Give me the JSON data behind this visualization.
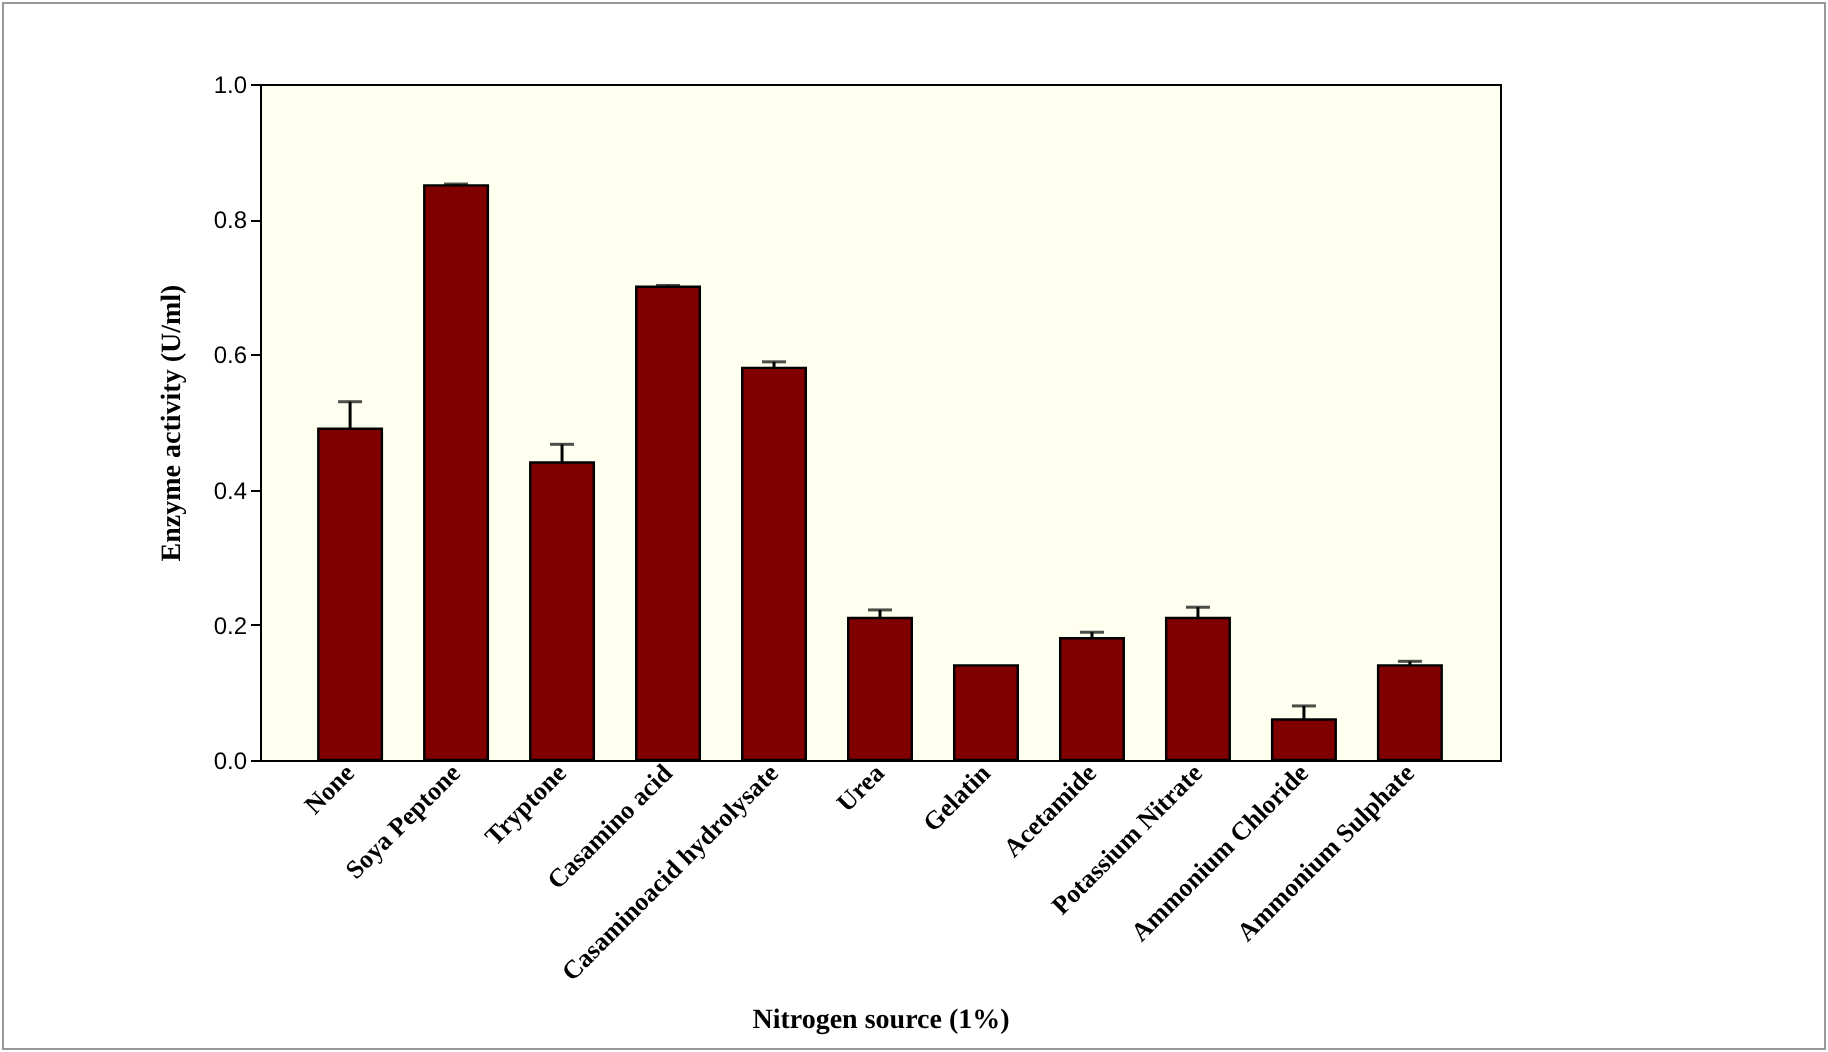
{
  "chart_data": {
    "type": "bar",
    "xlabel": "Nitrogen source (1%)",
    "ylabel": "Enzyme activity (U/ml)",
    "categories": [
      "None",
      "Soya Peptone",
      "Tryptone",
      "Casamino acid",
      "Casaminoacid hydrolysate",
      "Urea",
      "Gelatin",
      "Acetamide",
      "Potassium Nitrate",
      "Ammonium Chloride",
      "Ammonium Sulphate"
    ],
    "values": [
      0.49,
      0.85,
      0.44,
      0.7,
      0.58,
      0.21,
      0.14,
      0.18,
      0.21,
      0.06,
      0.14
    ],
    "errors": [
      0.04,
      0.002,
      0.027,
      0.002,
      0.009,
      0.012,
      null,
      0.009,
      0.016,
      0.02,
      0.006
    ],
    "color": "#800000",
    "ylim": [
      0,
      1
    ],
    "yticks": [
      {
        "value": 0,
        "label": "0.0"
      },
      {
        "value": 0.2,
        "label": "0.2"
      },
      {
        "value": 0.4,
        "label": "0.4"
      },
      {
        "value": 0.6,
        "label": "0.6"
      },
      {
        "value": 0.8,
        "label": "0.8"
      },
      {
        "value": 1,
        "label": "1.0"
      }
    ],
    "grid": false
  }
}
